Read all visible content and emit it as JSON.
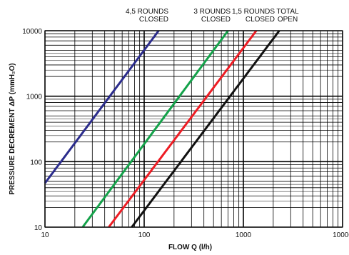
{
  "chart_data": {
    "type": "line",
    "x_scale": "log",
    "y_scale": "log",
    "xlim": [
      10,
      10000
    ],
    "ylim": [
      10,
      10000
    ],
    "grid": true,
    "xlabel": "FLOW Q (l/h)",
    "ylabel": "PRESSURE DECREMENT ΔP (mmH₂O)",
    "x_ticks": [
      "10",
      "100",
      "1000",
      "10000"
    ],
    "y_ticks": [
      "10",
      "100",
      "1000",
      "10000"
    ],
    "series": [
      {
        "name": "4,5 ROUNDS CLOSED",
        "label_lines": [
          "4,5 ROUNDS",
          "CLOSED"
        ],
        "color": "#2b2c8c",
        "x": [
          10,
          140
        ],
        "y": [
          47,
          10000
        ]
      },
      {
        "name": "3 ROUNDS CLOSED",
        "label_lines": [
          "3 ROUNDS",
          "CLOSED"
        ],
        "color": "#14a24a",
        "x": [
          24,
          700
        ],
        "y": [
          10,
          10000
        ]
      },
      {
        "name": "1,5 ROUNDS CLOSED",
        "label_lines": [
          "1,5 ROUNDS",
          "CLOSED"
        ],
        "color": "#ee1c24",
        "x": [
          44,
          1350
        ],
        "y": [
          10,
          10000
        ]
      },
      {
        "name": "TOTAL OPEN",
        "label_lines": [
          "TOTAL",
          "OPEN"
        ],
        "color": "#111111",
        "x": [
          75,
          2300
        ],
        "y": [
          10,
          10000
        ]
      }
    ]
  }
}
